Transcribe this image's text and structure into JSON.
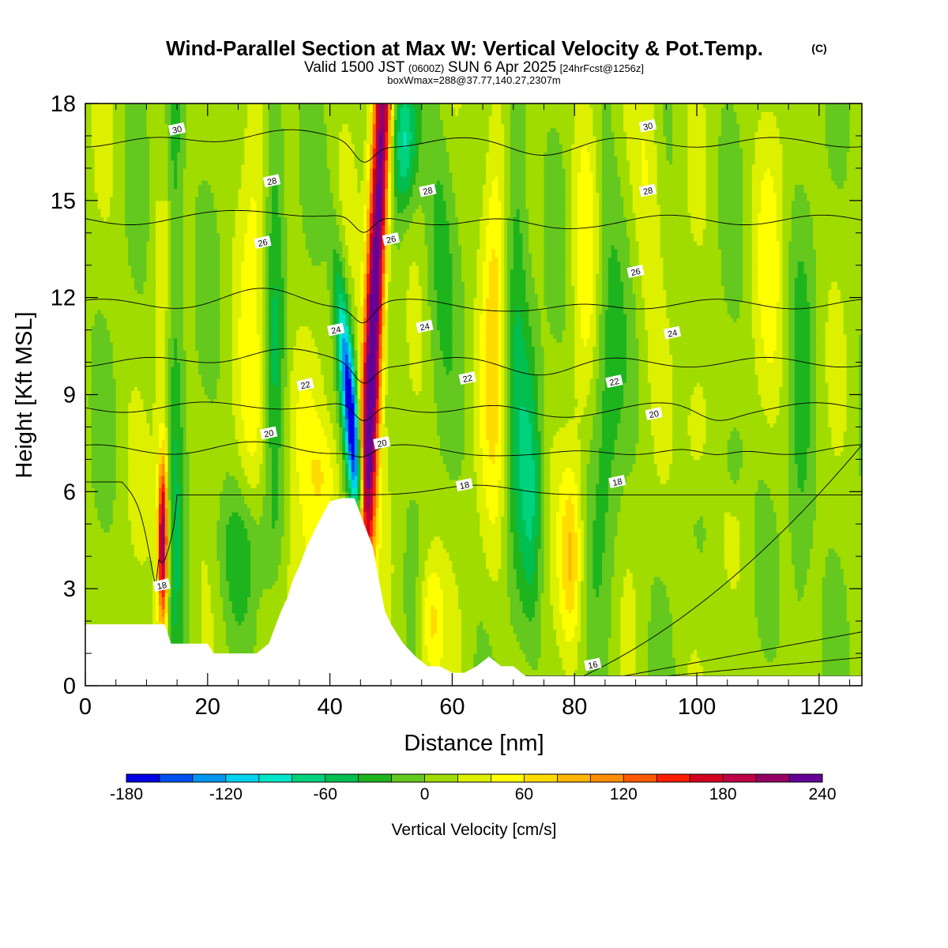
{
  "chart_data": {
    "type": "heatmap",
    "title": "Wind-Parallel Section at Max W: Vertical Velocity & Pot.Temp.",
    "title_mark": "(C)",
    "subtitle": {
      "valid": "Valid 1500 JST",
      "utc": "(0600Z)",
      "date": "SUN 6 Apr 2025",
      "fcst": "[24hrFcst@1256z]"
    },
    "box_info": "boxWmax=288@37.77,140.27,2307m",
    "xlabel": "Distance [nm]",
    "ylabel": "Height [Kft MSL]",
    "xlim": [
      0,
      127
    ],
    "ylim": [
      0,
      18
    ],
    "xticks": [
      0,
      20,
      40,
      60,
      80,
      100,
      120
    ],
    "yticks": [
      0,
      3,
      6,
      9,
      12,
      15,
      18
    ],
    "colorbar": {
      "label": "Vertical Velocity [cm/s]",
      "ticks": [
        -180,
        -120,
        -60,
        0,
        60,
        120,
        180,
        240
      ],
      "levels": [
        -180,
        -160,
        -140,
        -120,
        -100,
        -80,
        -60,
        -40,
        -20,
        0,
        20,
        40,
        60,
        80,
        100,
        120,
        140,
        160,
        180,
        200,
        220,
        240
      ],
      "colors": [
        "#0000e6",
        "#0050f0",
        "#0096f0",
        "#00d2f0",
        "#00e6c8",
        "#00d27d",
        "#00be50",
        "#1eb41e",
        "#64c81e",
        "#a0dc00",
        "#dcf000",
        "#ffff00",
        "#ffdc00",
        "#ffb400",
        "#ff8c00",
        "#ff5a00",
        "#ff1e00",
        "#d2001e",
        "#be0046",
        "#960064",
        "#640096"
      ]
    },
    "terrain": [
      [
        0,
        1.9
      ],
      [
        13,
        1.9
      ],
      [
        14,
        1.3
      ],
      [
        20,
        1.3
      ],
      [
        21,
        1.0
      ],
      [
        28,
        1.0
      ],
      [
        30,
        1.3
      ],
      [
        31,
        1.8
      ],
      [
        32,
        2.3
      ],
      [
        33,
        2.7
      ],
      [
        34,
        3.3
      ],
      [
        35,
        3.7
      ],
      [
        36,
        4.2
      ],
      [
        38,
        5.0
      ],
      [
        40,
        5.7
      ],
      [
        42,
        5.8
      ],
      [
        44,
        5.8
      ],
      [
        46,
        4.8
      ],
      [
        47,
        4.3
      ],
      [
        48,
        3.3
      ],
      [
        49,
        2.3
      ],
      [
        50,
        1.9
      ],
      [
        52,
        1.3
      ],
      [
        54,
        0.9
      ],
      [
        56,
        0.6
      ],
      [
        58,
        0.6
      ],
      [
        60,
        0.4
      ],
      [
        62,
        0.4
      ],
      [
        64,
        0.6
      ],
      [
        66,
        0.9
      ],
      [
        68,
        0.6
      ],
      [
        70,
        0.6
      ],
      [
        72,
        0.3
      ],
      [
        76,
        0.3
      ],
      [
        78,
        0.3
      ],
      [
        82,
        0.3
      ],
      [
        90,
        0.3
      ],
      [
        127,
        0.3
      ]
    ],
    "theta_contours": [
      {
        "level": 16,
        "label_positions": [
          [
            83,
            0.65
          ]
        ]
      },
      {
        "level": 18,
        "label_positions": [
          [
            12.5,
            3.1
          ],
          [
            62,
            6.2
          ],
          [
            87,
            6.3
          ]
        ]
      },
      {
        "level": 20,
        "label_positions": [
          [
            30,
            7.8
          ],
          [
            48.5,
            7.5
          ],
          [
            93,
            8.4
          ]
        ]
      },
      {
        "level": 22,
        "label_positions": [
          [
            36,
            9.3
          ],
          [
            62.5,
            9.5
          ],
          [
            86.5,
            9.4
          ]
        ]
      },
      {
        "level": 24,
        "label_positions": [
          [
            41,
            11.0
          ],
          [
            55.5,
            11.1
          ],
          [
            96,
            10.9
          ]
        ]
      },
      {
        "level": 26,
        "label_positions": [
          [
            29,
            13.7
          ],
          [
            50,
            13.8
          ],
          [
            90,
            12.8
          ]
        ]
      },
      {
        "level": 28,
        "label_positions": [
          [
            30.5,
            15.6
          ],
          [
            56,
            15.3
          ],
          [
            92,
            15.3
          ]
        ]
      },
      {
        "level": 30,
        "label_positions": [
          [
            15,
            17.2
          ],
          [
            92,
            17.3
          ]
        ]
      }
    ]
  }
}
